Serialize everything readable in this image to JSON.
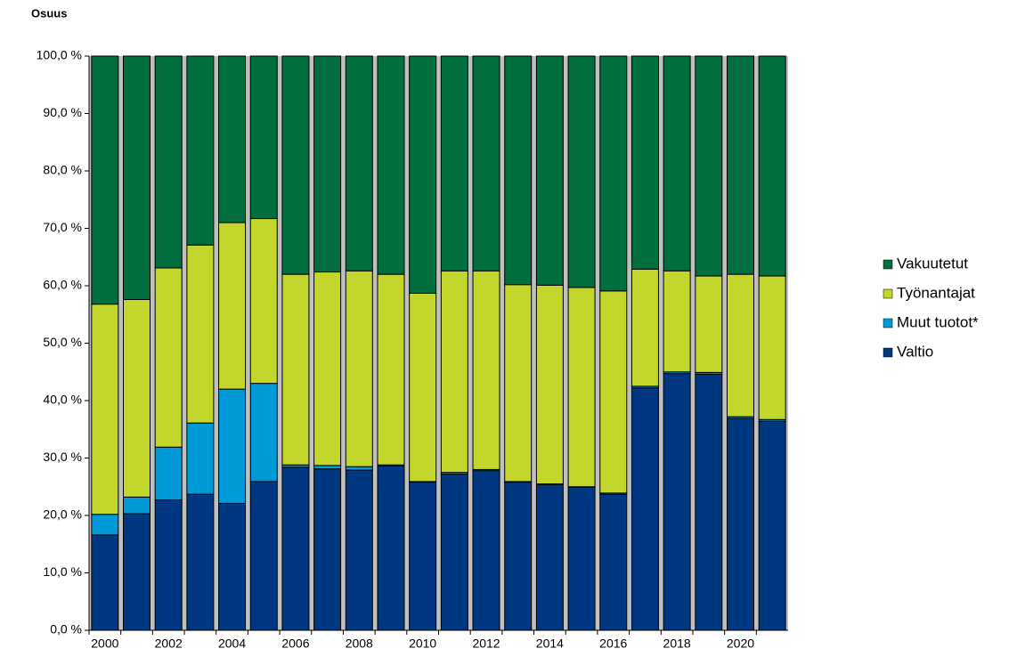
{
  "chart_data": {
    "type": "stacked_bar",
    "y_axis_label": "Osuus",
    "categories": [
      "2000",
      null,
      "2002",
      null,
      "2004",
      null,
      "2006",
      null,
      "2008",
      null,
      "2010",
      null,
      "2012",
      null,
      "2014",
      null,
      "2016",
      null,
      "2018",
      null,
      "2020",
      null
    ],
    "series": [
      {
        "name": "Valtio",
        "color": "#003781",
        "values": [
          16.6,
          20.3,
          22.7,
          23.7,
          22.1,
          25.9,
          28.4,
          28.1,
          27.9,
          28.6,
          25.8,
          27.2,
          27.8,
          25.8,
          25.4,
          24.9,
          23.7,
          42.2,
          44.7,
          44.6,
          36.9,
          36.4
        ]
      },
      {
        "name": "Muut tuotot*",
        "color": "#009ad8",
        "values": [
          3.6,
          2.9,
          9.2,
          12.4,
          19.9,
          17.1,
          0.4,
          0.6,
          0.6,
          0.2,
          0.1,
          0.3,
          0.2,
          0.1,
          0.1,
          0.1,
          0.2,
          0.3,
          0.3,
          0.3,
          0.3,
          0.3
        ]
      },
      {
        "name": "Työnantajat",
        "color": "#c3d62c",
        "values": [
          36.6,
          34.4,
          31.2,
          31.0,
          29.0,
          28.7,
          33.2,
          33.7,
          34.1,
          33.2,
          32.8,
          35.1,
          34.6,
          34.3,
          34.6,
          34.7,
          35.2,
          20.4,
          17.6,
          16.8,
          24.8,
          25.0
        ]
      },
      {
        "name": "Vakuutetut",
        "color": "#006f3d",
        "values": [
          43.2,
          42.4,
          36.9,
          32.9,
          29.0,
          28.3,
          38.0,
          37.6,
          37.4,
          38.0,
          41.3,
          37.4,
          37.4,
          39.8,
          39.9,
          40.3,
          40.9,
          37.1,
          37.4,
          38.3,
          38.0,
          38.3
        ]
      }
    ],
    "ylim": [
      0,
      100
    ],
    "yticks": [
      {
        "value": 0,
        "label": "0,0 %"
      },
      {
        "value": 10,
        "label": "10,0 %"
      },
      {
        "value": 20,
        "label": "20,0 %"
      },
      {
        "value": 30,
        "label": "30,0 %"
      },
      {
        "value": 40,
        "label": "40,0 %"
      },
      {
        "value": 50,
        "label": "50,0 %"
      },
      {
        "value": 60,
        "label": "60,0 %"
      },
      {
        "value": 70,
        "label": "70,0 %"
      },
      {
        "value": 80,
        "label": "80,0 %"
      },
      {
        "value": 90,
        "label": "90,0 %"
      },
      {
        "value": 100,
        "label": "100,0 %"
      }
    ],
    "legend": "right"
  }
}
